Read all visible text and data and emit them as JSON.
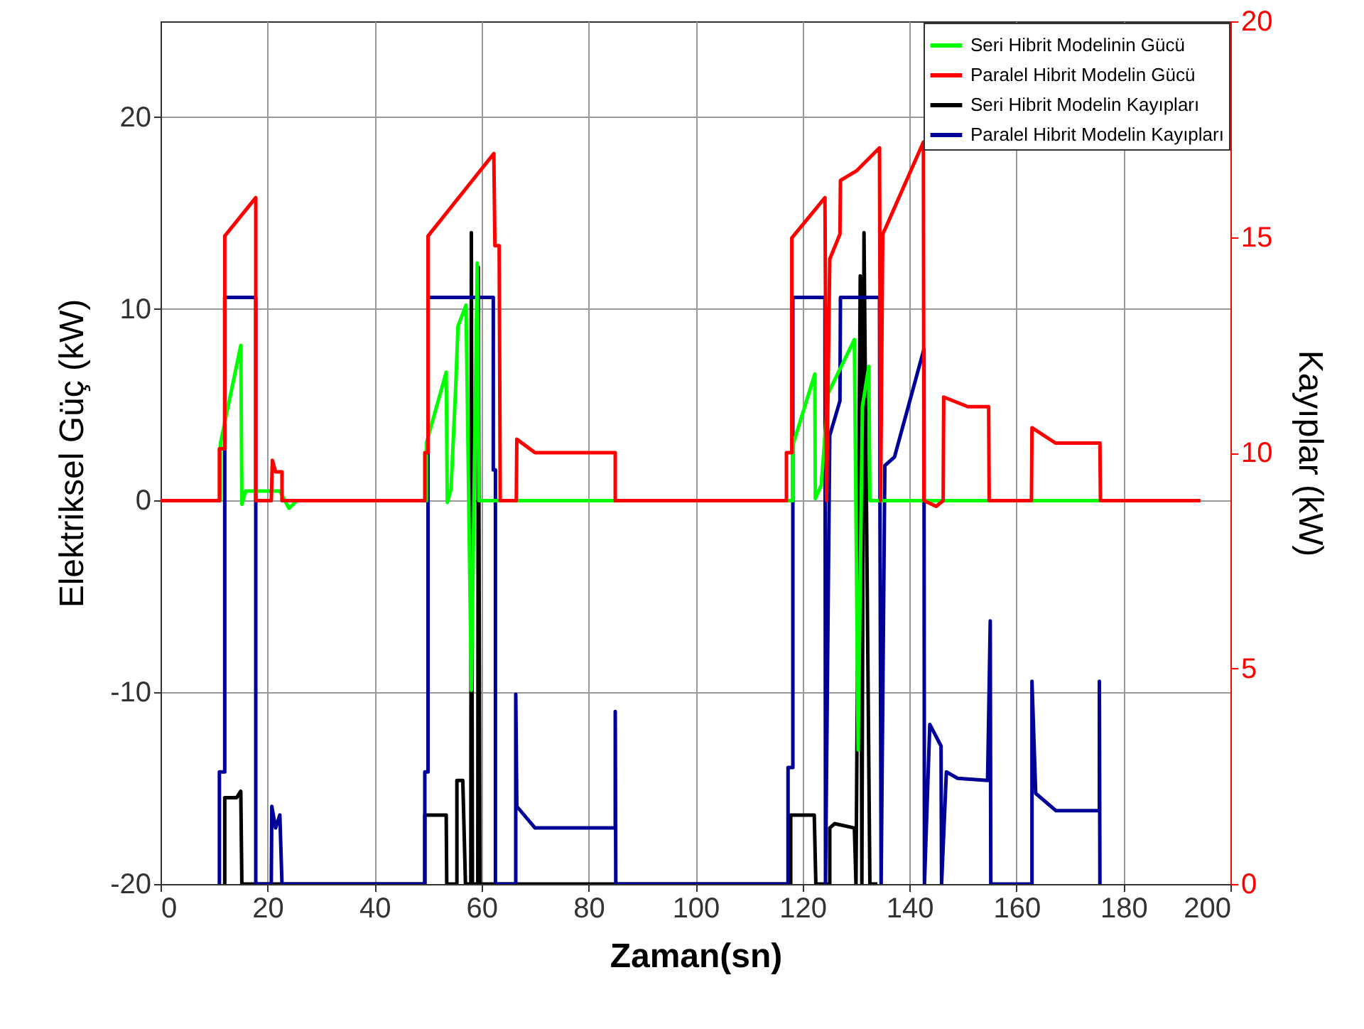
{
  "chart_data": {
    "type": "line",
    "xlabel": "Zaman(sn)",
    "ylabel": "Elektriksel Güç (kW)",
    "y2label": "Kayıplar (kW)",
    "xlim": [
      0,
      200
    ],
    "xticks": [
      0,
      20,
      40,
      60,
      80,
      100,
      120,
      140,
      160,
      180,
      200
    ],
    "ylim": [
      -20,
      25
    ],
    "yticks": [
      -20,
      -10,
      0,
      10,
      20
    ],
    "y2lim": [
      0,
      20
    ],
    "y2ticks": [
      0,
      5,
      10,
      15,
      20
    ],
    "grid": true,
    "legend": "top right",
    "marker": "none",
    "line_style": "solid",
    "series": [
      {
        "name": "Seri Hibrit Modelinin Gücü",
        "color": "#00ff00",
        "x": [
          0,
          11.2,
          11.2,
          15,
          15.2,
          15.9,
          22.3,
          24,
          25.5,
          49.7,
          49.7,
          53.4,
          53.6,
          54.3,
          55.2,
          55.6,
          57.1,
          58.1,
          59.2,
          59.5,
          118.2,
          118.2,
          122.3,
          122.4,
          123.5,
          124.8,
          129.7,
          130.4,
          131.2,
          132.4,
          132.6,
          175.6
        ],
        "values": [
          0,
          0,
          3.0,
          8.1,
          -0.2,
          0.5,
          0.5,
          -0.4,
          0,
          0,
          3.0,
          6.7,
          -0.1,
          0.6,
          6.1,
          9.1,
          10.2,
          -9.9,
          12.4,
          0,
          0,
          2.9,
          6.6,
          0.1,
          0.8,
          5.6,
          8.4,
          -13,
          4.9,
          7.0,
          0,
          0
        ]
      },
      {
        "name": "Paralel Hibrit Modelin Gücü",
        "color": "#ff0000",
        "x": [
          0,
          11,
          11,
          12,
          12,
          17.8,
          17.8,
          20.7,
          20.9,
          21.5,
          22.7,
          22.7,
          49.4,
          49.4,
          50,
          50,
          62.3,
          62.5,
          63.3,
          63.5,
          66.5,
          66.6,
          70,
          85,
          85,
          117,
          117,
          118,
          118,
          124.2,
          124.5,
          125.1,
          127,
          127.1,
          130.1,
          134.4,
          134.6,
          135,
          135.5,
          142.6,
          142.7,
          145,
          146.3,
          146.4,
          150.9,
          154.8,
          154.9,
          162.8,
          162.9,
          167.3,
          175.6,
          175.7,
          194.4
        ],
        "values": [
          0,
          0,
          2.7,
          2.7,
          13.8,
          15.8,
          0,
          0,
          2.1,
          1.5,
          1.5,
          0,
          0,
          2.5,
          2.5,
          13.8,
          18.1,
          13.3,
          13.3,
          0,
          0,
          3.2,
          2.5,
          2.5,
          0,
          0,
          2.5,
          2.5,
          13.7,
          15.8,
          0,
          12.6,
          13.9,
          16.7,
          17.2,
          18.4,
          0,
          13.9,
          14.2,
          18.7,
          0,
          -0.3,
          0,
          5.4,
          4.9,
          4.9,
          0,
          0,
          3.8,
          3.0,
          3.0,
          0,
          0
        ]
      },
      {
        "name": "Seri Hibrit Modelin Kayıpları",
        "color": "#000000",
        "axis": "y2",
        "x": [
          12,
          12,
          14.2,
          15,
          15.2,
          26,
          49.4,
          49.4,
          53.4,
          53.5,
          55.4,
          55.4,
          56.5,
          57,
          58,
          58.1,
          58.3,
          59.3,
          59.4,
          59.7,
          117.8,
          117.8,
          122.2,
          122.5,
          125.1,
          125.1,
          126,
          129.7,
          130,
          130.8,
          131.1,
          131.5,
          132.6,
          134
        ],
        "values": [
          0,
          2.0,
          2.0,
          2.15,
          0,
          0,
          0,
          1.6,
          1.6,
          0,
          0,
          2.4,
          2.4,
          0,
          0,
          15.1,
          0,
          0,
          14.3,
          0,
          0,
          1.6,
          1.6,
          0,
          0,
          1.3,
          1.4,
          1.3,
          0,
          14.1,
          0,
          15.1,
          0,
          0
        ]
      },
      {
        "name": "Paralel Hibrit Modelin Kayıpları",
        "color": "#000099",
        "axis": "y2",
        "x": [
          11,
          11,
          12,
          12,
          17.8,
          17.8,
          20.7,
          20.8,
          21.5,
          22.3,
          22.7,
          49.4,
          49.4,
          50,
          50,
          62.2,
          62.2,
          62.6,
          62.6,
          66.4,
          66.4,
          66.6,
          70,
          85,
          85,
          85.1,
          117.3,
          117.3,
          118.2,
          118.2,
          124.2,
          124.3,
          125.1,
          127,
          127.1,
          134.4,
          134.5,
          134.7,
          135.4,
          137.2,
          142.7,
          142.8,
          143.8,
          145.9,
          146,
          146.9,
          149,
          154.6,
          155.1,
          155.2,
          162.9,
          162.9,
          163.6,
          167.4,
          175.5,
          175.5,
          175.6
        ],
        "values": [
          0,
          2.6,
          2.6,
          13.6,
          13.6,
          0,
          0,
          1.8,
          1.3,
          1.6,
          0,
          0,
          2.6,
          2.6,
          13.6,
          13.6,
          9.6,
          9.6,
          0,
          0,
          4.4,
          1.8,
          1.3,
          1.3,
          4.0,
          0,
          0,
          2.7,
          2.7,
          13.6,
          13.6,
          0,
          10.4,
          11.2,
          13.6,
          13.6,
          7.9,
          0,
          9.7,
          9.9,
          12.4,
          0,
          3.7,
          3.2,
          0,
          2.6,
          2.45,
          2.4,
          6.1,
          0,
          0,
          4.7,
          2.1,
          1.7,
          1.7,
          4.7,
          0
        ]
      }
    ]
  }
}
